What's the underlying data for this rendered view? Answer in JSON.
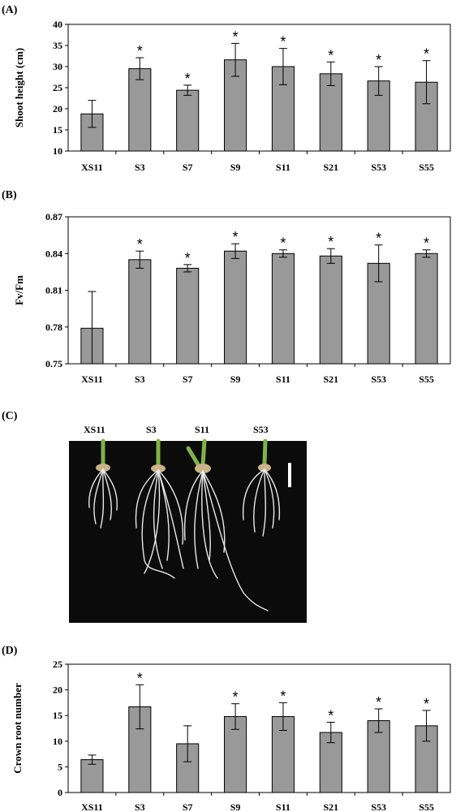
{
  "panels": [
    {
      "label": "(A)"
    },
    {
      "label": "(B)"
    },
    {
      "label": "(C)"
    },
    {
      "label": "(D)"
    }
  ],
  "photo": {
    "labels": [
      "XS11",
      "S3",
      "S11",
      "S53"
    ]
  },
  "chart_data": [
    {
      "type": "bar",
      "title": "",
      "xlabel": "",
      "ylabel": "Shoot height (cm)",
      "categories": [
        "XS11",
        "S3",
        "S7",
        "S9",
        "S11",
        "S21",
        "S53",
        "S55"
      ],
      "values": [
        18.8,
        29.5,
        24.4,
        31.6,
        30.0,
        28.3,
        26.6,
        26.3
      ],
      "errors": [
        3.2,
        2.6,
        1.2,
        3.9,
        4.3,
        2.8,
        3.4,
        5.1
      ],
      "significant": [
        false,
        true,
        true,
        true,
        true,
        true,
        true,
        true
      ],
      "ylim": [
        10,
        40
      ],
      "yticks": [
        10,
        15,
        20,
        25,
        30,
        35,
        40
      ],
      "ytick_labels": [
        "10",
        "15",
        "20",
        "25",
        "30",
        "35",
        "40"
      ],
      "bar_color": "#999999"
    },
    {
      "type": "bar",
      "title": "",
      "xlabel": "",
      "ylabel": "Fv/Fm",
      "categories": [
        "XS11",
        "S3",
        "S7",
        "S9",
        "S11",
        "S21",
        "S53",
        "S55"
      ],
      "values": [
        0.779,
        0.835,
        0.828,
        0.842,
        0.84,
        0.838,
        0.832,
        0.84
      ],
      "errors": [
        0.03,
        0.007,
        0.003,
        0.006,
        0.003,
        0.006,
        0.015,
        0.003
      ],
      "significant": [
        false,
        true,
        true,
        true,
        true,
        true,
        true,
        true
      ],
      "ylim": [
        0.75,
        0.87
      ],
      "yticks": [
        0.75,
        0.78,
        0.81,
        0.84,
        0.87
      ],
      "ytick_labels": [
        "0.75",
        "0.78",
        "0.81",
        "0.84",
        "0.87"
      ],
      "bar_color": "#999999"
    },
    {
      "type": "bar",
      "title": "",
      "xlabel": "",
      "ylabel": "Crown root number",
      "categories": [
        "XS11",
        "S3",
        "S7",
        "S9",
        "S11",
        "S21",
        "S53",
        "S55"
      ],
      "values": [
        6.4,
        16.7,
        9.5,
        14.8,
        14.8,
        11.7,
        14.0,
        13.0
      ],
      "errors": [
        0.9,
        4.3,
        3.5,
        2.5,
        2.7,
        2.0,
        2.3,
        3.0
      ],
      "significant": [
        false,
        true,
        false,
        true,
        true,
        true,
        true,
        true
      ],
      "ylim": [
        0,
        25
      ],
      "yticks": [
        0,
        5,
        10,
        15,
        20,
        25
      ],
      "ytick_labels": [
        "0",
        "5",
        "10",
        "15",
        "20",
        "25"
      ],
      "bar_color": "#999999"
    }
  ],
  "significance_marker": "*"
}
